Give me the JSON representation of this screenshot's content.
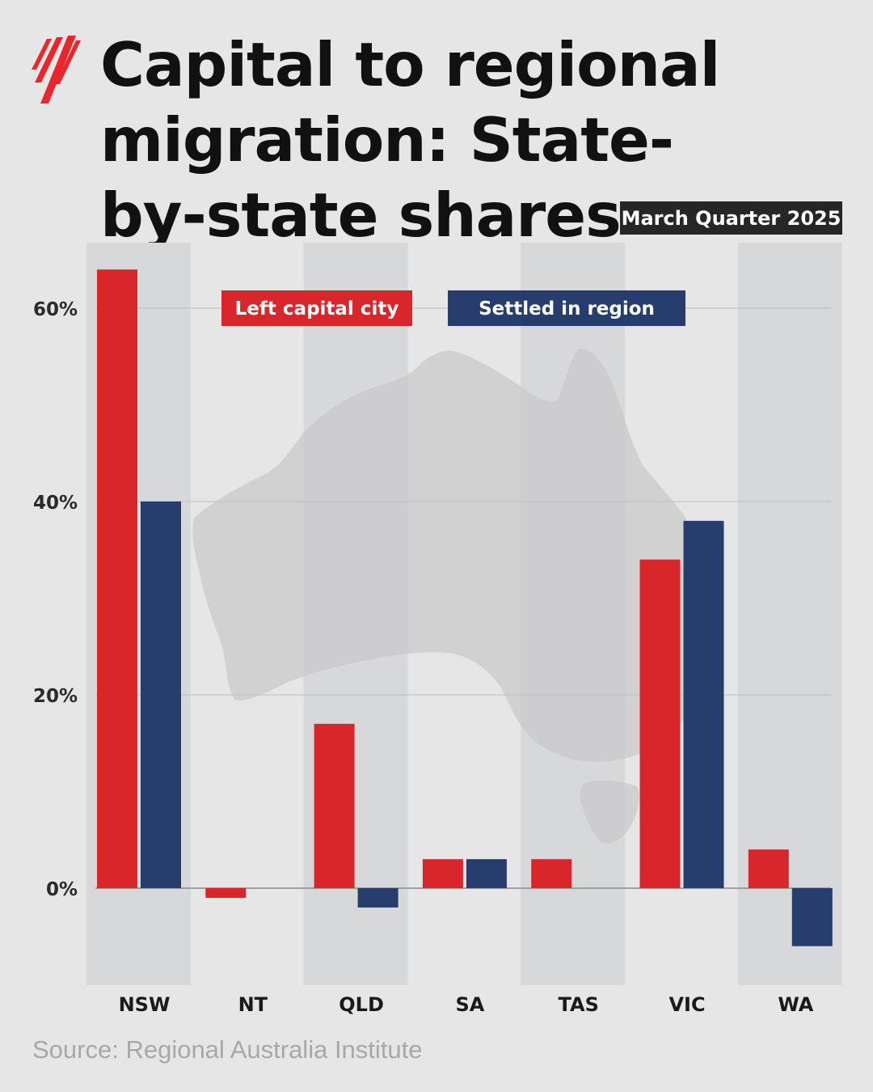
{
  "header": {
    "title": "Capital to regional migration: State-by-state shares",
    "badge": "March Quarter 2025"
  },
  "footer": {
    "source": "Source: Regional Australia Institute"
  },
  "colors": {
    "left_capital": "#d9262b",
    "settled_region": "#263d6e",
    "logo": "#e8262b"
  },
  "chart_data": {
    "type": "bar",
    "title": "Capital to regional migration: State-by-state shares",
    "subtitle": "March Quarter 2025",
    "categories": [
      "NSW",
      "NT",
      "QLD",
      "SA",
      "TAS",
      "VIC",
      "WA"
    ],
    "series": [
      {
        "name": "Left capital city",
        "values": [
          64,
          -1,
          17,
          3,
          3,
          34,
          4
        ]
      },
      {
        "name": "Settled in region",
        "values": [
          40,
          0,
          -2,
          3,
          0,
          38,
          -6
        ]
      }
    ],
    "yticks": [
      0,
      20,
      40,
      60
    ],
    "ytick_labels": [
      "0%",
      "20%",
      "40%",
      "60%"
    ],
    "ylim": [
      -10,
      67
    ],
    "xlabel": "",
    "ylabel": "",
    "grid": true,
    "legend": "top"
  }
}
